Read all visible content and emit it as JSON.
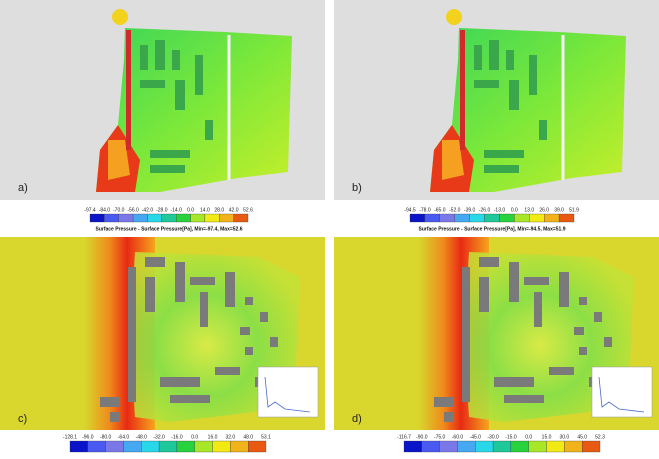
{
  "panels": [
    {
      "label": "a)",
      "ticks": [
        "-97.4",
        "-84.0",
        "-70.0",
        "-56.0",
        "-42.0",
        "-28.0",
        "-14.0",
        "0.0",
        "14.0",
        "28.0",
        "42.0",
        "52.6"
      ],
      "caption": "Surface Pressure - Surface Pressure[Pa], Min=-97.4, Max=52.6"
    },
    {
      "label": "b)",
      "ticks": [
        "-94.5",
        "-78.0",
        "-65.0",
        "-52.0",
        "-39.0",
        "-26.0",
        "-13.0",
        "0.0",
        "13.0",
        "26.0",
        "39.0",
        "51.9"
      ],
      "caption": "Surface Pressure - Surface Pressure[Pa], Min=-94.5, Max=51.9"
    },
    {
      "label": "c)",
      "ticks": [
        "-128.1",
        "-96.0",
        "-80.0",
        "-64.0",
        "-48.0",
        "-32.0",
        "-16.0",
        "0.0",
        "16.0",
        "32.0",
        "48.0",
        "53.1"
      ]
    },
    {
      "label": "d)",
      "ticks": [
        "-116.7",
        "-90.0",
        "-75.0",
        "-60.0",
        "-45.0",
        "-30.0",
        "-15.0",
        "0.0",
        "15.0",
        "30.0",
        "45.0",
        "52.3"
      ]
    }
  ]
}
